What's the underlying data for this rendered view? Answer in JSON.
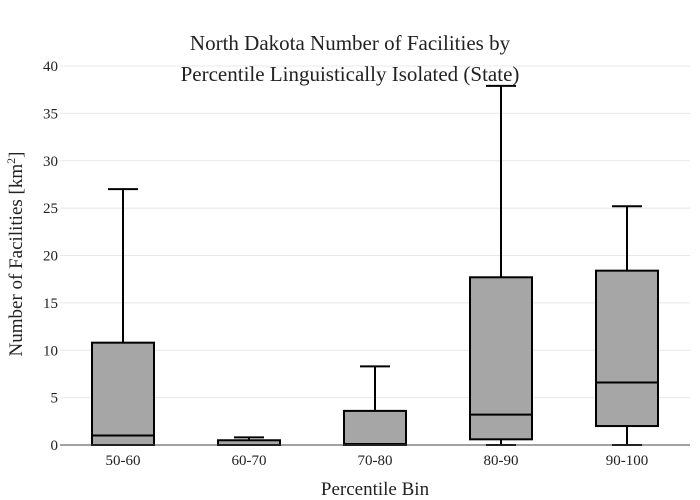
{
  "chart_data": {
    "type": "box",
    "title_lines": [
      "North Dakota Number of Facilities by",
      "Percentile Linguistically Isolated (State)"
    ],
    "xlabel": "Percentile Bin",
    "ylabel": "Number of Facilities  [km",
    "ylabel_sup": "2",
    "ylabel_end": "]",
    "ylim": [
      0,
      40
    ],
    "yticks": [
      0,
      5,
      10,
      15,
      20,
      25,
      30,
      35,
      40
    ],
    "grid": true,
    "colors": {
      "box_fill": "#a6a6a6",
      "box_line": "#000000",
      "grid": "#e8e8e8"
    },
    "categories": [
      "50-60",
      "60-70",
      "70-80",
      "80-90",
      "90-100"
    ],
    "boxes": [
      {
        "min": 0,
        "q1": 0,
        "median": 1,
        "q3": 10.8,
        "max": 27
      },
      {
        "min": 0,
        "q1": 0,
        "median": 0,
        "q3": 0.5,
        "max": 0.8
      },
      {
        "min": 0,
        "q1": 0,
        "median": 0.1,
        "q3": 3.6,
        "max": 8.3
      },
      {
        "min": 0,
        "q1": 0.6,
        "median": 3.2,
        "q3": 17.7,
        "max": 37.9
      },
      {
        "min": 0,
        "q1": 2.0,
        "median": 6.6,
        "q3": 18.4,
        "max": 25.2
      }
    ]
  }
}
